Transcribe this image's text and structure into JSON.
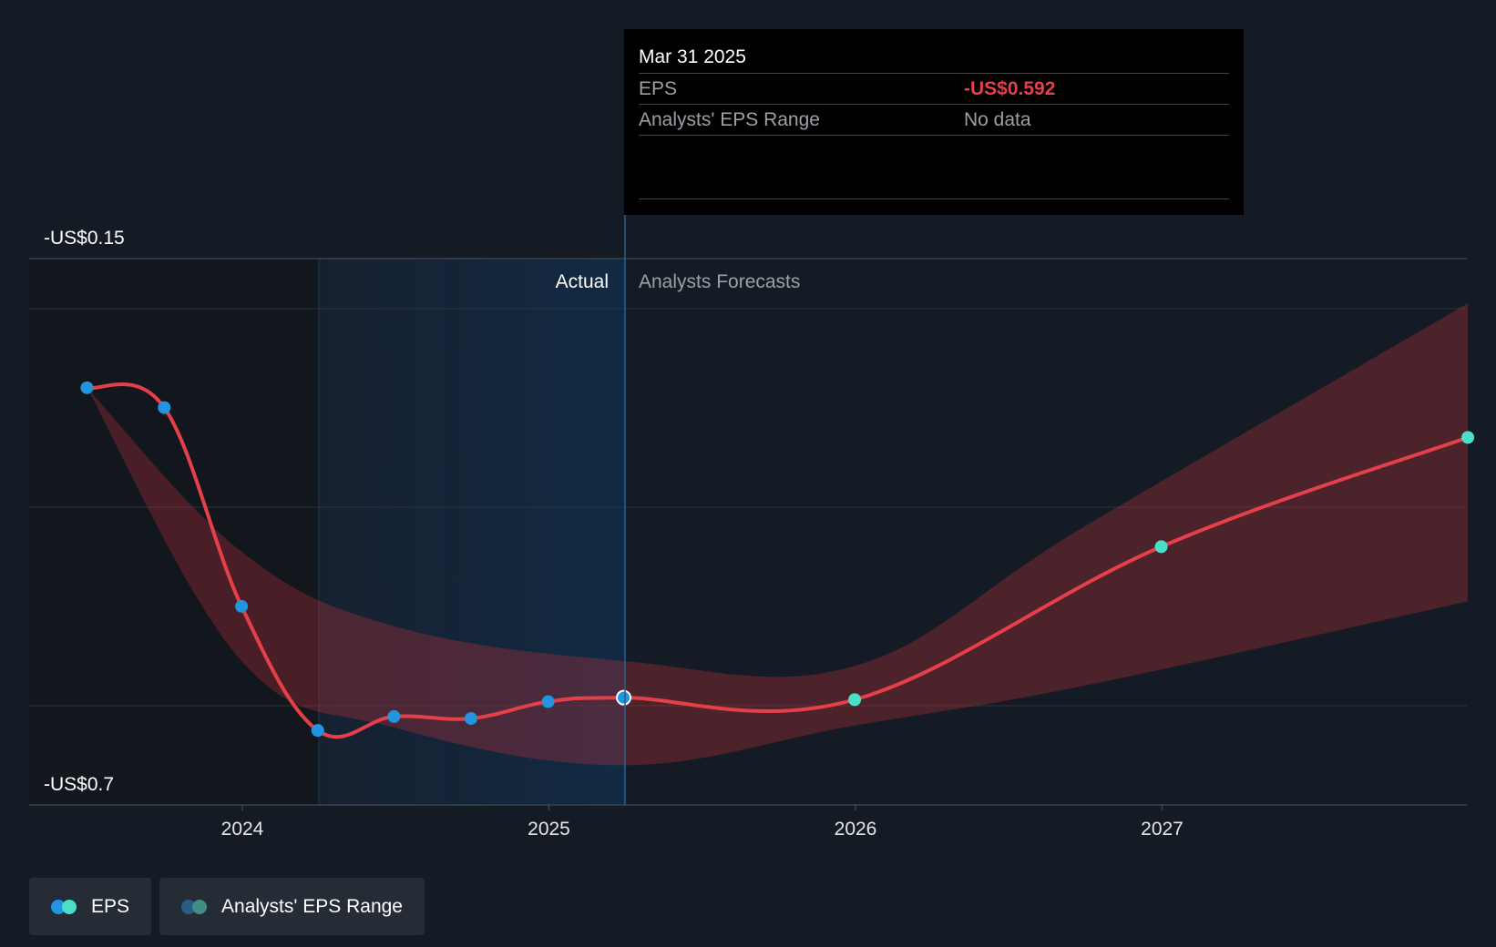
{
  "chart_data": {
    "type": "line",
    "title": "",
    "y_axis": {
      "label_top": "-US$0.15",
      "label_bottom": "-US$0.7",
      "ylim": [
        -0.7,
        -0.15
      ]
    },
    "x_axis": {
      "ticks": [
        "2024",
        "2025",
        "2026",
        "2027"
      ]
    },
    "regions": {
      "actual_label": "Actual",
      "forecast_label": "Analysts Forecasts",
      "divider_date": "Mar 31 2025"
    },
    "series": [
      {
        "name": "EPS",
        "color": "#e5404a",
        "points": [
          {
            "date": "2023-06-30",
            "value": -0.28
          },
          {
            "date": "2023-09-30",
            "value": -0.3
          },
          {
            "date": "2023-12-31",
            "value": -0.5
          },
          {
            "date": "2024-03-31",
            "value": -0.625
          },
          {
            "date": "2024-06-30",
            "value": -0.611
          },
          {
            "date": "2024-09-30",
            "value": -0.613
          },
          {
            "date": "2024-12-31",
            "value": -0.596
          },
          {
            "date": "2025-03-31",
            "value": -0.592
          },
          {
            "date": "2025-12-31",
            "value": -0.594,
            "forecast": true
          },
          {
            "date": "2026-12-31",
            "value": -0.44,
            "forecast": true
          },
          {
            "date": "2027-12-31",
            "value": -0.33,
            "forecast": true
          }
        ]
      }
    ],
    "range_band": {
      "name": "Analysts' EPS Range",
      "color": "#c0323c",
      "upper": [
        {
          "date": "2023-06-30",
          "value": -0.28
        },
        {
          "date": "2023-12-31",
          "value": -0.445
        },
        {
          "date": "2024-06-30",
          "value": -0.52
        },
        {
          "date": "2025-03-31",
          "value": -0.555
        },
        {
          "date": "2025-12-31",
          "value": -0.56
        },
        {
          "date": "2026-09-30",
          "value": -0.42
        },
        {
          "date": "2027-12-31",
          "value": -0.195
        }
      ],
      "lower": [
        {
          "date": "2023-06-30",
          "value": -0.28
        },
        {
          "date": "2023-12-31",
          "value": -0.555
        },
        {
          "date": "2024-06-30",
          "value": -0.622
        },
        {
          "date": "2025-03-31",
          "value": -0.66
        },
        {
          "date": "2025-12-31",
          "value": -0.62
        },
        {
          "date": "2026-09-30",
          "value": -0.58
        },
        {
          "date": "2027-12-31",
          "value": -0.495
        }
      ]
    },
    "grid": true,
    "legend": {
      "placement": "bottom-left",
      "items": [
        {
          "label": "EPS",
          "colors": [
            "#2394df",
            "#4ae0c8"
          ]
        },
        {
          "label": "Analysts' EPS Range",
          "colors": [
            "#2a5d84",
            "#3f8f86"
          ]
        }
      ]
    }
  },
  "tooltip": {
    "date": "Mar 31 2025",
    "rows": [
      {
        "label": "EPS",
        "value": "-US$0.592"
      },
      {
        "label": "Analysts' EPS Range",
        "value": "No data"
      }
    ]
  }
}
